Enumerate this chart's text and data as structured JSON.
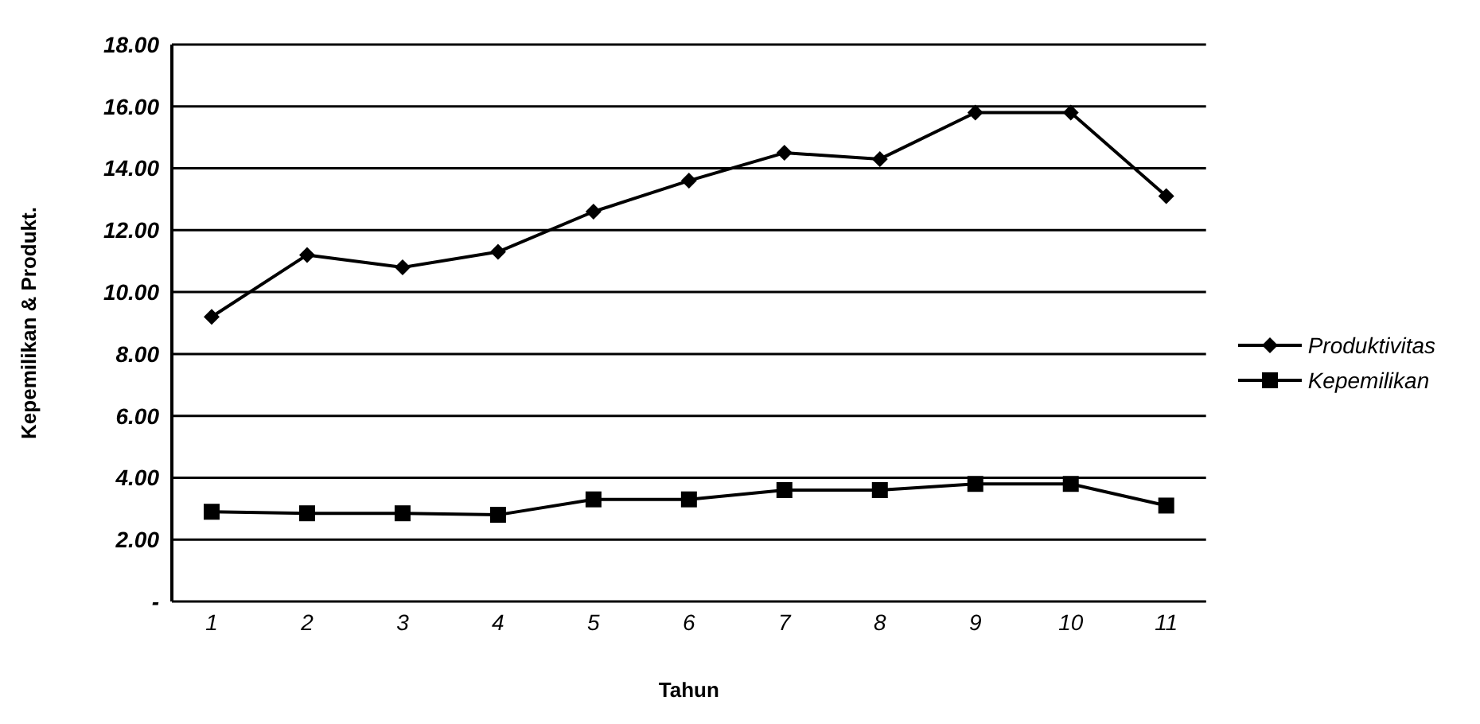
{
  "chart_data": {
    "type": "line",
    "xlabel": "Tahun",
    "ylabel": "Kepemilikan & Produkt.",
    "categories": [
      "1",
      "2",
      "3",
      "4",
      "5",
      "6",
      "7",
      "8",
      "9",
      "10",
      "11"
    ],
    "series": [
      {
        "name": "Produktivitas",
        "color": "#000000",
        "marker": "diamond",
        "values": [
          9.2,
          11.2,
          10.8,
          11.3,
          12.6,
          13.6,
          14.5,
          14.3,
          15.8,
          15.8,
          13.1
        ]
      },
      {
        "name": "Kepemilikan",
        "color": "#000000",
        "marker": "square",
        "values": [
          2.9,
          2.85,
          2.85,
          2.8,
          3.3,
          3.3,
          3.6,
          3.6,
          3.8,
          3.8,
          3.1
        ]
      }
    ],
    "ylim": [
      0,
      18
    ],
    "yticks": [
      {
        "value": 0,
        "label": "-"
      },
      {
        "value": 2,
        "label": "2.00"
      },
      {
        "value": 4,
        "label": "4.00"
      },
      {
        "value": 6,
        "label": "6.00"
      },
      {
        "value": 8,
        "label": "8.00"
      },
      {
        "value": 10,
        "label": "10.00"
      },
      {
        "value": 12,
        "label": "12.00"
      },
      {
        "value": 14,
        "label": "14.00"
      },
      {
        "value": 16,
        "label": "16.00"
      },
      {
        "value": 18,
        "label": "18.00"
      }
    ],
    "grid": "y",
    "legend": "right",
    "line_style": "solid"
  }
}
